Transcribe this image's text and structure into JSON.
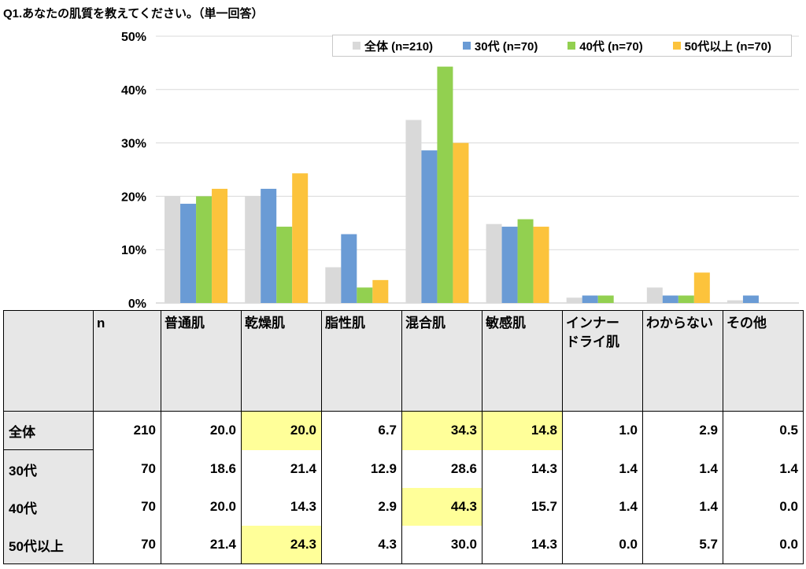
{
  "title": "Q1.あなたの肌質を教えてください。（単一回答）",
  "chart_data": {
    "type": "bar",
    "categories": [
      "普通肌",
      "乾燥肌",
      "脂性肌",
      "混合肌",
      "敏感肌",
      "インナードライ肌",
      "わからない",
      "その他"
    ],
    "series": [
      {
        "name": "全体 (n=210)",
        "color": "#d9d9d9",
        "values": [
          20.0,
          20.0,
          6.7,
          34.3,
          14.8,
          1.0,
          2.9,
          0.5
        ]
      },
      {
        "name": "30代 (n=70)",
        "color": "#6a9bd5",
        "values": [
          18.6,
          21.4,
          12.9,
          28.6,
          14.3,
          1.4,
          1.4,
          1.4
        ]
      },
      {
        "name": "40代 (n=70)",
        "color": "#92d050",
        "values": [
          20.0,
          14.3,
          2.9,
          44.3,
          15.7,
          1.4,
          1.4,
          0.0
        ]
      },
      {
        "name": "50代以上 (n=70)",
        "color": "#fcc33c",
        "values": [
          21.4,
          24.3,
          4.3,
          30.0,
          14.3,
          0.0,
          5.7,
          0.0
        ]
      }
    ],
    "ylim": [
      0,
      50
    ],
    "yticks": [
      "0%",
      "10%",
      "20%",
      "30%",
      "40%",
      "50%"
    ],
    "grid": true,
    "legend_position": "top-right"
  },
  "table": {
    "headers": [
      "n",
      "普通肌",
      "乾燥肌",
      "脂性肌",
      "混合肌",
      "敏感肌",
      "インナー\nドライ肌",
      "わからない",
      "その他"
    ],
    "rows": [
      {
        "label": "全体",
        "cells": [
          "210",
          "20.0",
          "20.0",
          "6.7",
          "34.3",
          "14.8",
          "1.0",
          "2.9",
          "0.5"
        ],
        "highlight": [
          false,
          false,
          true,
          false,
          true,
          true,
          false,
          false,
          false
        ]
      },
      {
        "label": "30代",
        "cells": [
          "70",
          "18.6",
          "21.4",
          "12.9",
          "28.6",
          "14.3",
          "1.4",
          "1.4",
          "1.4"
        ],
        "highlight": [
          false,
          false,
          false,
          false,
          false,
          false,
          false,
          false,
          false
        ]
      },
      {
        "label": "40代",
        "cells": [
          "70",
          "20.0",
          "14.3",
          "2.9",
          "44.3",
          "15.7",
          "1.4",
          "1.4",
          "0.0"
        ],
        "highlight": [
          false,
          false,
          false,
          false,
          true,
          false,
          false,
          false,
          false
        ]
      },
      {
        "label": "50代以上",
        "cells": [
          "70",
          "21.4",
          "24.3",
          "4.3",
          "30.0",
          "14.3",
          "0.0",
          "5.7",
          "0.0"
        ],
        "highlight": [
          false,
          false,
          true,
          false,
          false,
          false,
          false,
          false,
          false
        ]
      }
    ],
    "highlight_color": "#ffff99"
  }
}
